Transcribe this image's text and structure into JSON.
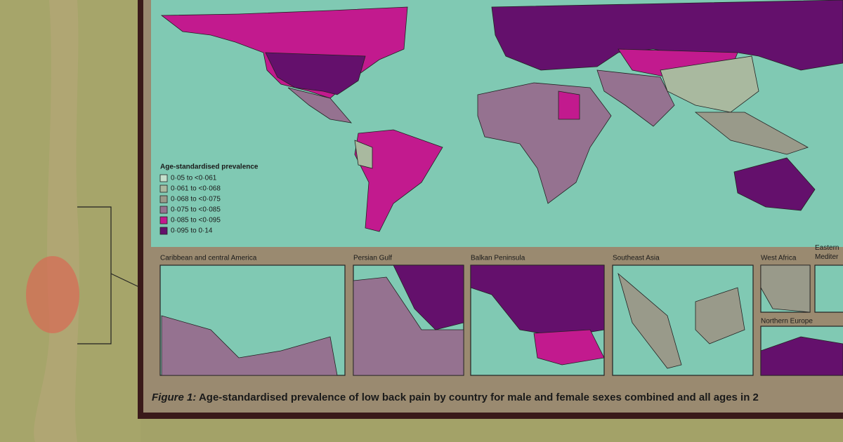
{
  "legend": {
    "title": "Age-standardised prevalence",
    "items": [
      {
        "label": "0·05 to <0·061",
        "color": "#c4e0cc"
      },
      {
        "label": "0·061 to <0·068",
        "color": "#a9b99f"
      },
      {
        "label": "0·068 to <0·075",
        "color": "#999a8a"
      },
      {
        "label": "0·075 to <0·085",
        "color": "#957290"
      },
      {
        "label": "0·085 to <0·095",
        "color": "#c21a8e"
      },
      {
        "label": "0·095 to 0·14",
        "color": "#64106c"
      }
    ]
  },
  "insets": [
    {
      "title": "Caribbean and central America"
    },
    {
      "title": "Persian Gulf"
    },
    {
      "title": "Balkan Peninsula"
    },
    {
      "title": "Southeast Asia"
    },
    {
      "title": "West Africa"
    },
    {
      "title": "Eastern Mediter"
    },
    {
      "title": "Northern Europe"
    }
  ],
  "caption": {
    "lead": "Figure 1:",
    "text": "Age-standardised prevalence of low back pain by country for male and female sexes combined and all ages in 2"
  }
}
